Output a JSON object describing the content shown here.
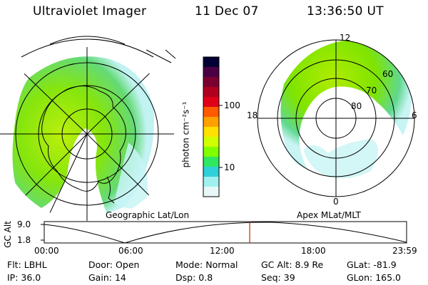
{
  "header": {
    "title": "Ultraviolet Imager",
    "date": "11 Dec 07",
    "time": "13:36:50 UT"
  },
  "colorbar": {
    "unit_label": "photon cm⁻²s⁻¹",
    "ticks": [
      "100",
      "10"
    ],
    "colors": [
      "#000033",
      "#4b0044",
      "#7a0030",
      "#b00020",
      "#e0001a",
      "#ff5a00",
      "#ffa000",
      "#ffe000",
      "#d0ff00",
      "#80ff00",
      "#30e860",
      "#30d0d8",
      "#a0f0f0",
      "#e8f8f8"
    ]
  },
  "left_panel": {
    "caption": "Geographic Lat/Lon"
  },
  "right_panel": {
    "caption": "Apex MLat/MLT",
    "mlt_labels": {
      "top": "12",
      "left": "18",
      "right": "6",
      "bottom": "0"
    },
    "lat_labels": [
      "60",
      "70",
      "80"
    ]
  },
  "altitude_plot": {
    "y_label": "GC Alt",
    "y_ticks": [
      "9.0",
      "1.8"
    ],
    "x_ticks": [
      "00:00",
      "06:00",
      "12:00",
      "18:00",
      "23:59"
    ],
    "current_time_fraction": 0.567
  },
  "footer": {
    "row1": [
      {
        "label": "Flt:",
        "value": "LBHL"
      },
      {
        "label": "Door:",
        "value": "Open"
      },
      {
        "label": "Mode:",
        "value": "Normal"
      },
      {
        "label": "GC Alt:",
        "value": "8.9 Re"
      },
      {
        "label": "GLat:",
        "value": "-81.9"
      }
    ],
    "row2": [
      {
        "label": "IP:",
        "value": "36.0"
      },
      {
        "label": "Gain:",
        "value": "14"
      },
      {
        "label": "Dsp:",
        "value": "0.8"
      },
      {
        "label": "Seq:",
        "value": "39"
      },
      {
        "label": "GLon:",
        "value": "165.0"
      }
    ]
  },
  "colors": {
    "aurora_green": "#7fe800",
    "aurora_yellow": "#d6f000",
    "aurora_cyan": "#9ff0f0",
    "marker_red": "#cc2200"
  }
}
